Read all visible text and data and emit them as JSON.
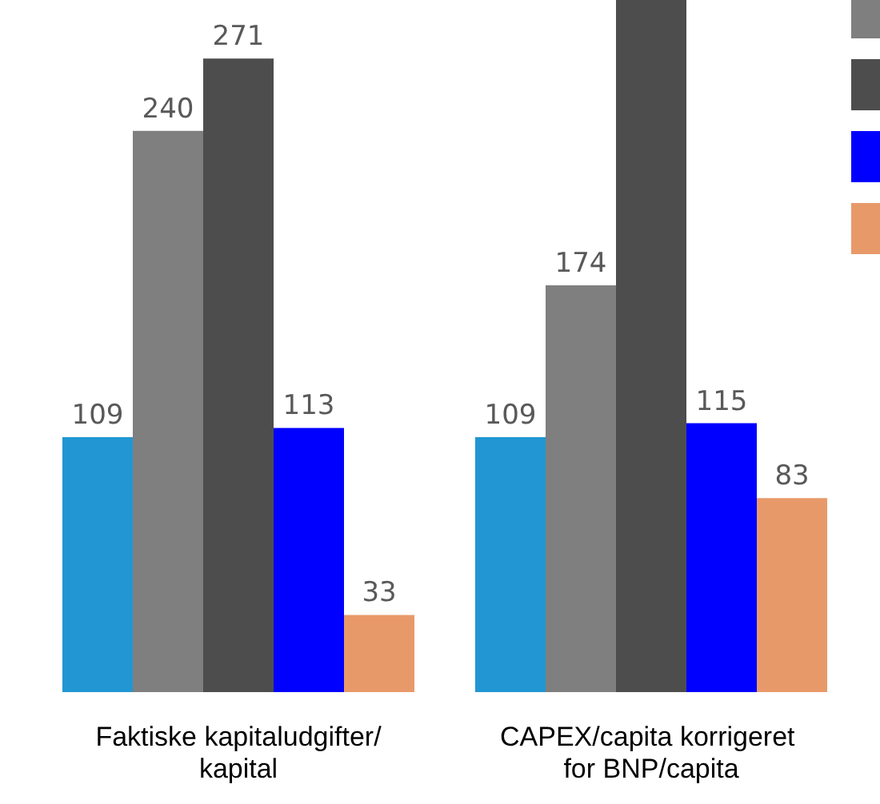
{
  "chart_data": {
    "type": "bar",
    "categories": [
      "Faktiske kapitaludgifter/kapital",
      "CAPEX/capita korrigeret for BNP/capita"
    ],
    "series": [
      {
        "color": "#2196d3",
        "values": [
          109,
          109
        ],
        "value_labels": [
          "109",
          "109"
        ]
      },
      {
        "color": "#7f7f7f",
        "values": [
          240,
          174
        ],
        "value_labels": [
          "240",
          "174"
        ]
      },
      {
        "color": "#4d4d4d",
        "values": [
          271,
          296
        ],
        "value_labels": [
          "271",
          null
        ]
      },
      {
        "color": "#0000ff",
        "values": [
          113,
          115
        ],
        "value_labels": [
          "113",
          "115"
        ]
      },
      {
        "color": "#e8996a",
        "values": [
          33,
          83
        ],
        "value_labels": [
          "33",
          "83"
        ]
      }
    ],
    "ylim": [
      0,
      296
    ]
  }
}
